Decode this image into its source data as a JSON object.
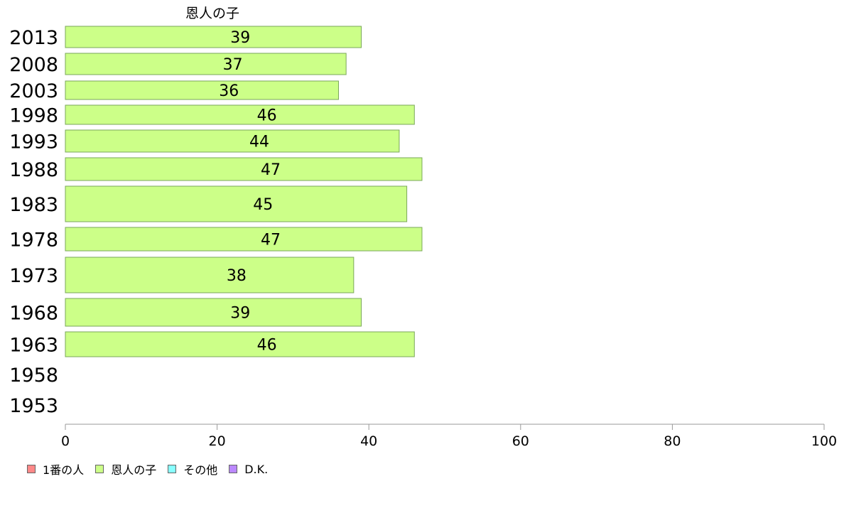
{
  "chart_data": {
    "type": "bar",
    "orientation": "horizontal",
    "title": "恩人の子",
    "xlim": [
      0,
      100
    ],
    "xticks": [
      0,
      20,
      40,
      60,
      80,
      100
    ],
    "categories": [
      "2013",
      "2008",
      "2003",
      "1998",
      "1993",
      "1988",
      "1983",
      "1978",
      "1973",
      "1968",
      "1963",
      "1958",
      "1953"
    ],
    "series": [
      {
        "name": "恩人の子",
        "color": "#ccff88",
        "values": [
          39,
          37,
          36,
          46,
          44,
          47,
          45,
          47,
          38,
          39,
          46,
          null,
          null
        ],
        "data_labels": [
          "39",
          "37",
          "36",
          "46",
          "44",
          "47",
          "45",
          "47",
          "38",
          "39",
          "46",
          "",
          ""
        ]
      }
    ],
    "legend": [
      {
        "label": "1番の人",
        "color": "#ff8888"
      },
      {
        "label": "恩人の子",
        "color": "#ccff88"
      },
      {
        "label": "その他",
        "color": "#88ffff"
      },
      {
        "label": "D.K.",
        "color": "#bb88ff"
      }
    ],
    "legend_position": "bottom-left",
    "grid": false
  }
}
